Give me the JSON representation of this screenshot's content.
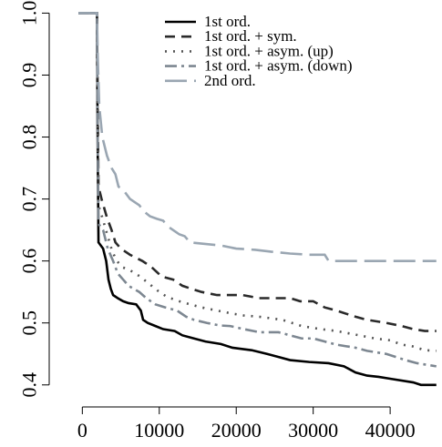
{
  "chart_data": {
    "type": "line",
    "title": "",
    "xlabel": "",
    "ylabel": "",
    "xlim": [
      -3000,
      46500
    ],
    "ylim": [
      0.385,
      1.005
    ],
    "x_ticks": [
      0,
      10000,
      20000,
      30000,
      40000
    ],
    "x_tick_labels": [
      "0",
      "10000",
      "20000",
      "30000",
      "40000"
    ],
    "y_ticks": [
      0.4,
      0.5,
      0.6,
      0.7,
      0.8,
      0.9,
      1.0
    ],
    "y_tick_labels": [
      "0.4",
      "0.5",
      "0.6",
      "0.7",
      "0.8",
      "0.9",
      "1.0"
    ],
    "grid": false,
    "legend_position": "top-right",
    "series": [
      {
        "name": "1st ord.",
        "color": "#000000",
        "dash": "solid",
        "points": [
          [
            -500,
            1.0
          ],
          [
            1900,
            1.0
          ],
          [
            2000,
            0.78
          ],
          [
            2100,
            0.63
          ],
          [
            2700,
            0.62
          ],
          [
            3100,
            0.6
          ],
          [
            3400,
            0.57
          ],
          [
            3700,
            0.555
          ],
          [
            4000,
            0.545
          ],
          [
            4600,
            0.54
          ],
          [
            5300,
            0.535
          ],
          [
            6000,
            0.532
          ],
          [
            7000,
            0.53
          ],
          [
            7600,
            0.52
          ],
          [
            7900,
            0.505
          ],
          [
            8500,
            0.5
          ],
          [
            9500,
            0.495
          ],
          [
            10500,
            0.49
          ],
          [
            12000,
            0.487
          ],
          [
            13000,
            0.48
          ],
          [
            14500,
            0.475
          ],
          [
            16000,
            0.47
          ],
          [
            18000,
            0.466
          ],
          [
            19500,
            0.46
          ],
          [
            22000,
            0.456
          ],
          [
            24000,
            0.45
          ],
          [
            25500,
            0.445
          ],
          [
            27000,
            0.44
          ],
          [
            29500,
            0.437
          ],
          [
            32000,
            0.435
          ],
          [
            34000,
            0.43
          ],
          [
            35500,
            0.42
          ],
          [
            37000,
            0.415
          ],
          [
            38500,
            0.413
          ],
          [
            40000,
            0.41
          ],
          [
            43000,
            0.404
          ],
          [
            44000,
            0.4
          ],
          [
            46000,
            0.4
          ]
        ]
      },
      {
        "name": "1st ord. + sym.",
        "color": "#2a2a2a",
        "dash": "11,7",
        "points": [
          [
            -500,
            1.0
          ],
          [
            1900,
            1.0
          ],
          [
            2000,
            0.86
          ],
          [
            2100,
            0.72
          ],
          [
            2500,
            0.7
          ],
          [
            3200,
            0.67
          ],
          [
            3800,
            0.65
          ],
          [
            4300,
            0.63
          ],
          [
            5000,
            0.62
          ],
          [
            6200,
            0.61
          ],
          [
            7800,
            0.6
          ],
          [
            9000,
            0.59
          ],
          [
            10300,
            0.575
          ],
          [
            11800,
            0.57
          ],
          [
            13000,
            0.56
          ],
          [
            14200,
            0.555
          ],
          [
            15500,
            0.55
          ],
          [
            17500,
            0.545
          ],
          [
            19000,
            0.545
          ],
          [
            20800,
            0.545
          ],
          [
            23000,
            0.54
          ],
          [
            27000,
            0.54
          ],
          [
            28300,
            0.535
          ],
          [
            30000,
            0.535
          ],
          [
            31500,
            0.525
          ],
          [
            33000,
            0.52
          ],
          [
            35500,
            0.51
          ],
          [
            37000,
            0.505
          ],
          [
            39500,
            0.5
          ],
          [
            41500,
            0.495
          ],
          [
            43000,
            0.49
          ],
          [
            44500,
            0.487
          ],
          [
            46000,
            0.487
          ]
        ]
      },
      {
        "name": "1st ord. + asym. (up)",
        "color": "#555555",
        "dash": "2,7",
        "points": [
          [
            -500,
            1.0
          ],
          [
            1900,
            1.0
          ],
          [
            2000,
            0.83
          ],
          [
            2100,
            0.69
          ],
          [
            2600,
            0.67
          ],
          [
            3300,
            0.64
          ],
          [
            3900,
            0.615
          ],
          [
            4500,
            0.6
          ],
          [
            5200,
            0.59
          ],
          [
            6200,
            0.585
          ],
          [
            7500,
            0.575
          ],
          [
            8500,
            0.565
          ],
          [
            9800,
            0.552
          ],
          [
            11000,
            0.542
          ],
          [
            12600,
            0.535
          ],
          [
            14000,
            0.53
          ],
          [
            15500,
            0.525
          ],
          [
            17500,
            0.52
          ],
          [
            19500,
            0.515
          ],
          [
            21000,
            0.512
          ],
          [
            23000,
            0.51
          ],
          [
            26000,
            0.505
          ],
          [
            28500,
            0.495
          ],
          [
            31000,
            0.49
          ],
          [
            33000,
            0.487
          ],
          [
            36000,
            0.48
          ],
          [
            38000,
            0.475
          ],
          [
            40000,
            0.472
          ],
          [
            41500,
            0.465
          ],
          [
            43000,
            0.462
          ],
          [
            44500,
            0.456
          ],
          [
            46000,
            0.455
          ]
        ]
      },
      {
        "name": "1st ord. + asym. (down)",
        "color": "#7d8791",
        "dash": "13,5,3,5",
        "points": [
          [
            -500,
            1.0
          ],
          [
            1900,
            1.0
          ],
          [
            2000,
            0.8
          ],
          [
            2100,
            0.66
          ],
          [
            2700,
            0.65
          ],
          [
            3300,
            0.62
          ],
          [
            4000,
            0.6
          ],
          [
            4600,
            0.58
          ],
          [
            5300,
            0.57
          ],
          [
            6000,
            0.56
          ],
          [
            7400,
            0.55
          ],
          [
            8300,
            0.54
          ],
          [
            9500,
            0.53
          ],
          [
            10800,
            0.525
          ],
          [
            12300,
            0.52
          ],
          [
            13500,
            0.51
          ],
          [
            14500,
            0.505
          ],
          [
            16200,
            0.5
          ],
          [
            17800,
            0.496
          ],
          [
            19200,
            0.495
          ],
          [
            21000,
            0.49
          ],
          [
            23000,
            0.485
          ],
          [
            25500,
            0.485
          ],
          [
            27000,
            0.48
          ],
          [
            28500,
            0.475
          ],
          [
            30000,
            0.475
          ],
          [
            31500,
            0.47
          ],
          [
            33000,
            0.465
          ],
          [
            35500,
            0.46
          ],
          [
            37000,
            0.455
          ],
          [
            39500,
            0.45
          ],
          [
            42000,
            0.44
          ],
          [
            43500,
            0.435
          ],
          [
            46000,
            0.43
          ]
        ]
      },
      {
        "name": "2nd ord.",
        "color": "#9aa6b2",
        "dash": "24,8",
        "points": [
          [
            -500,
            1.0
          ],
          [
            1900,
            1.0
          ],
          [
            2000,
            0.93
          ],
          [
            2200,
            0.85
          ],
          [
            2600,
            0.8
          ],
          [
            3200,
            0.77
          ],
          [
            3800,
            0.75
          ],
          [
            4300,
            0.74
          ],
          [
            4700,
            0.72
          ],
          [
            5300,
            0.715
          ],
          [
            6200,
            0.7
          ],
          [
            7400,
            0.69
          ],
          [
            8000,
            0.68
          ],
          [
            8800,
            0.672
          ],
          [
            9700,
            0.668
          ],
          [
            10500,
            0.665
          ],
          [
            11200,
            0.655
          ],
          [
            12600,
            0.643
          ],
          [
            13300,
            0.64
          ],
          [
            14000,
            0.63
          ],
          [
            15500,
            0.628
          ],
          [
            18000,
            0.625
          ],
          [
            20000,
            0.62
          ],
          [
            22500,
            0.618
          ],
          [
            24500,
            0.615
          ],
          [
            27000,
            0.612
          ],
          [
            29500,
            0.61
          ],
          [
            31500,
            0.61
          ],
          [
            32000,
            0.6
          ],
          [
            35000,
            0.6
          ],
          [
            40000,
            0.6
          ],
          [
            46000,
            0.6
          ]
        ]
      }
    ]
  }
}
